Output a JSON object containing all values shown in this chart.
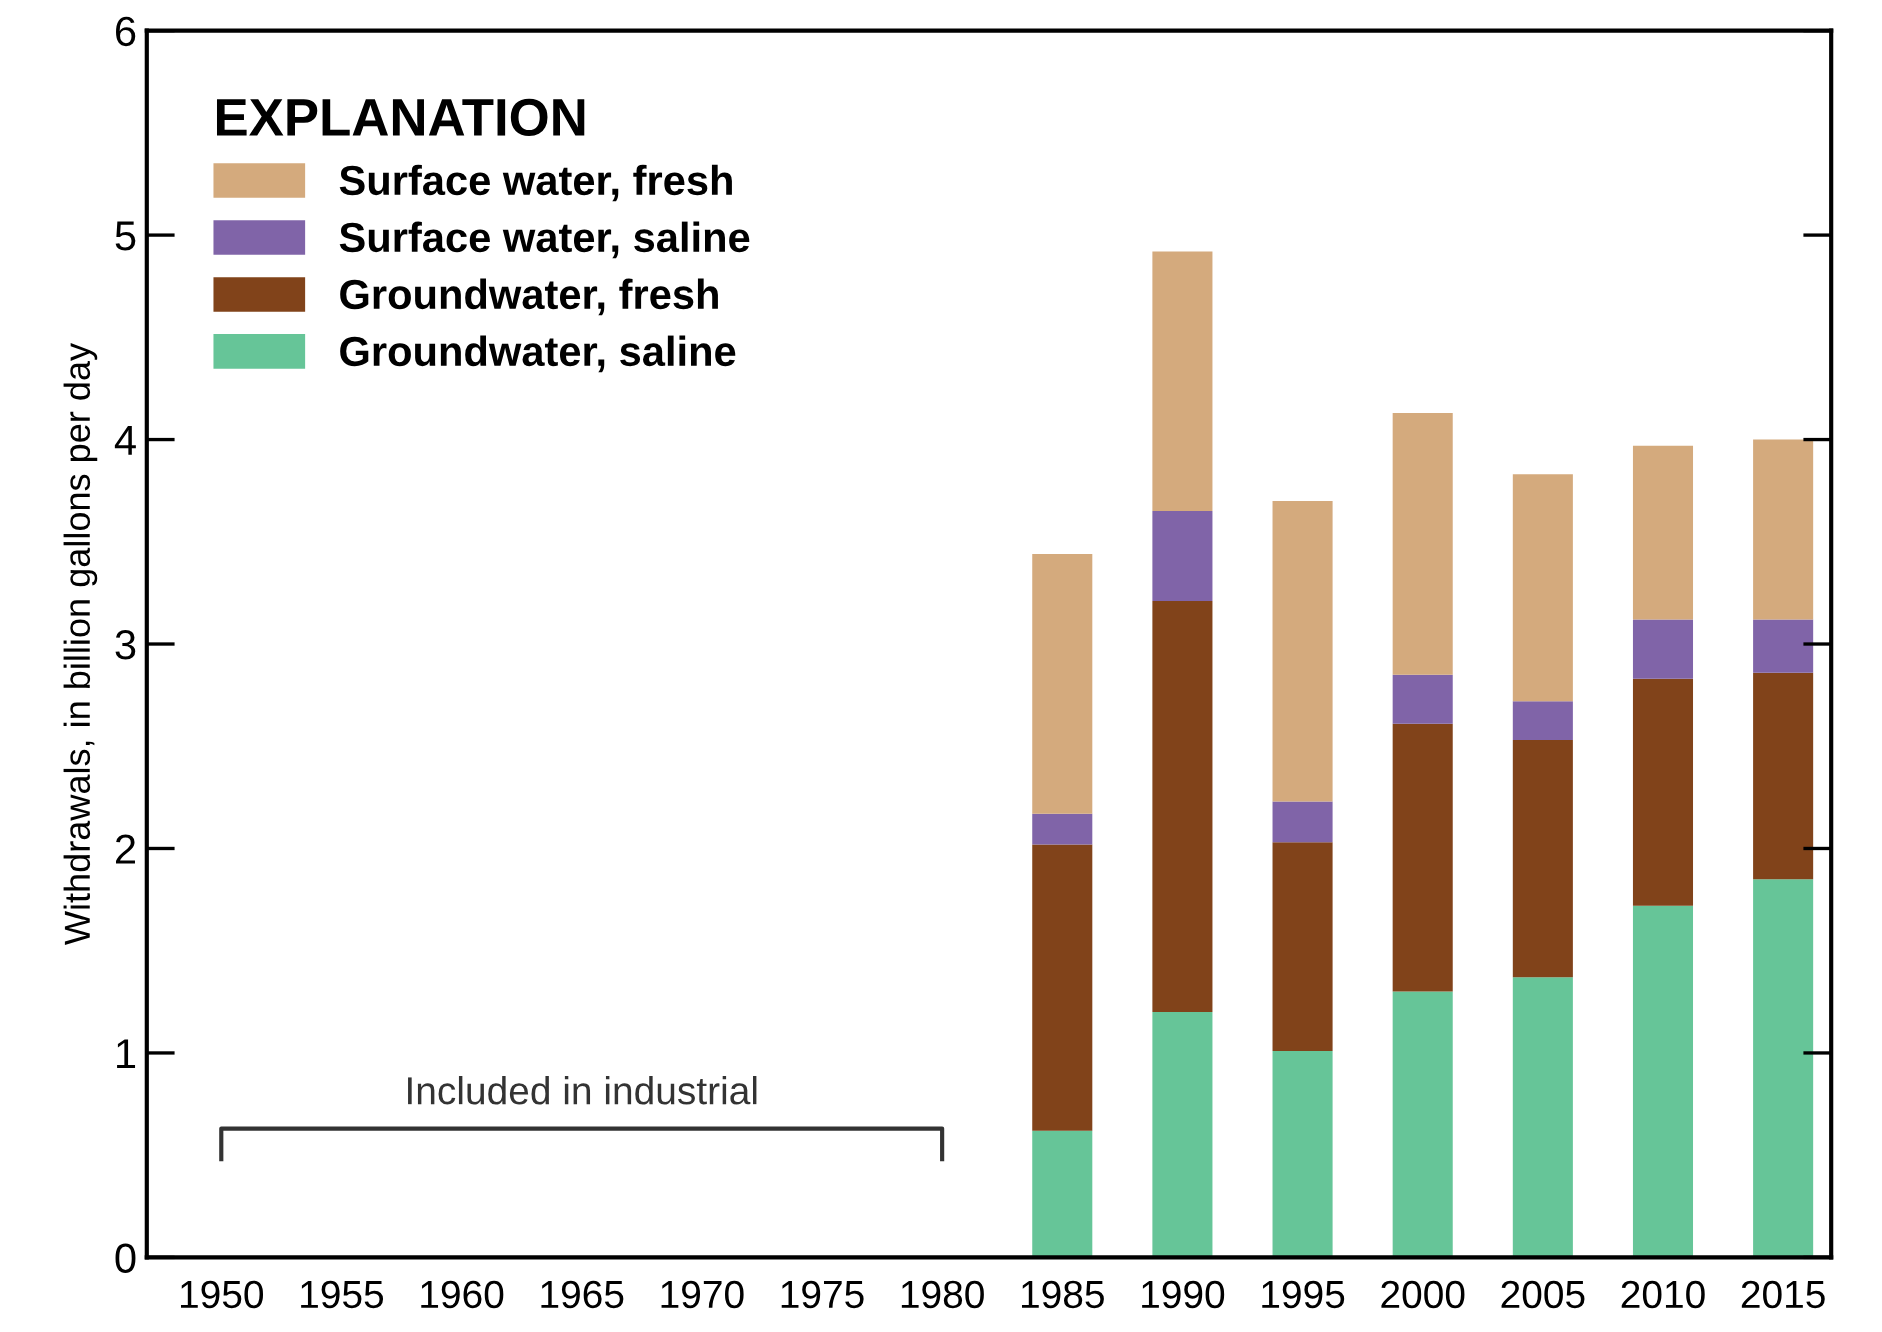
{
  "chart_data": {
    "type": "bar",
    "stacked": true,
    "ylabel": "Withdrawals, in billion gallons per day",
    "legend_title": "EXPLANATION",
    "legend": "top left",
    "categories": [
      "1950",
      "1955",
      "1960",
      "1965",
      "1970",
      "1975",
      "1980",
      "1985",
      "1990",
      "1995",
      "2000",
      "2005",
      "2010",
      "2015"
    ],
    "series": [
      {
        "name": "Groundwater, saline",
        "color": "#66c598",
        "values": [
          null,
          null,
          null,
          null,
          null,
          null,
          null,
          0.62,
          1.2,
          1.01,
          1.3,
          1.37,
          1.72,
          1.85
        ]
      },
      {
        "name": "Groundwater, fresh",
        "color": "#81431a",
        "values": [
          null,
          null,
          null,
          null,
          null,
          null,
          null,
          1.4,
          2.01,
          1.02,
          1.31,
          1.16,
          1.11,
          1.01
        ]
      },
      {
        "name": "Surface water, saline",
        "color": "#8064a8",
        "values": [
          null,
          null,
          null,
          null,
          null,
          null,
          null,
          0.15,
          0.44,
          0.2,
          0.24,
          0.19,
          0.29,
          0.26
        ]
      },
      {
        "name": "Surface water, fresh",
        "color": "#d4aa7d",
        "values": [
          null,
          null,
          null,
          null,
          null,
          null,
          null,
          1.27,
          1.27,
          1.47,
          1.28,
          1.11,
          0.85,
          0.88
        ]
      }
    ],
    "ylim": [
      0,
      6
    ],
    "yticks": [
      0,
      1,
      2,
      3,
      4,
      5,
      6
    ],
    "grid": false,
    "annotations": [
      "Included in industrial"
    ]
  }
}
